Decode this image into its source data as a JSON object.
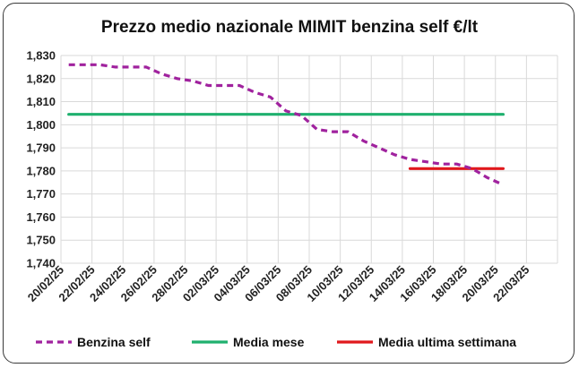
{
  "chart_data": {
    "type": "line",
    "title": "Prezzo medio nazionale MIMIT benzina self €/lt",
    "xlabel": "",
    "ylabel": "",
    "ylim": [
      1.74,
      1.83
    ],
    "y_ticks": [
      "1,740",
      "1,750",
      "1,760",
      "1,770",
      "1,780",
      "1,790",
      "1,800",
      "1,810",
      "1,820",
      "1,830"
    ],
    "x_ticks": [
      "20/02/25",
      "22/02/25",
      "24/02/25",
      "26/02/25",
      "28/02/25",
      "02/03/25",
      "04/03/25",
      "06/03/25",
      "08/03/25",
      "10/03/25",
      "12/03/25",
      "14/03/25",
      "16/03/25",
      "18/03/25",
      "20/03/25",
      "22/03/25"
    ],
    "grid": true,
    "legend_position": "bottom",
    "series": [
      {
        "name": "Benzina self",
        "color": "#A0229E",
        "style": "dashed",
        "x": [
          1,
          2,
          3,
          4,
          5,
          6,
          7,
          8,
          9,
          10,
          11,
          12,
          13,
          14,
          15,
          16,
          17,
          18,
          19,
          20,
          21,
          22,
          23,
          24,
          25,
          26,
          27,
          28,
          29
        ],
        "values": [
          1.826,
          1.826,
          1.826,
          1.825,
          1.825,
          1.825,
          1.822,
          1.82,
          1.819,
          1.817,
          1.817,
          1.817,
          1.814,
          1.812,
          1.806,
          1.804,
          1.798,
          1.797,
          1.797,
          1.793,
          1.79,
          1.787,
          1.785,
          1.784,
          1.783,
          1.783,
          1.781,
          1.777,
          1.774
        ]
      },
      {
        "name": "Media mese",
        "color": "#1FB06E",
        "style": "solid",
        "x": [
          1,
          29
        ],
        "values": [
          1.8045,
          1.8045
        ]
      },
      {
        "name": "Media ultima settimana",
        "color": "#E0181C",
        "style": "solid",
        "x": [
          23,
          29
        ],
        "values": [
          1.781,
          1.781
        ]
      }
    ]
  }
}
